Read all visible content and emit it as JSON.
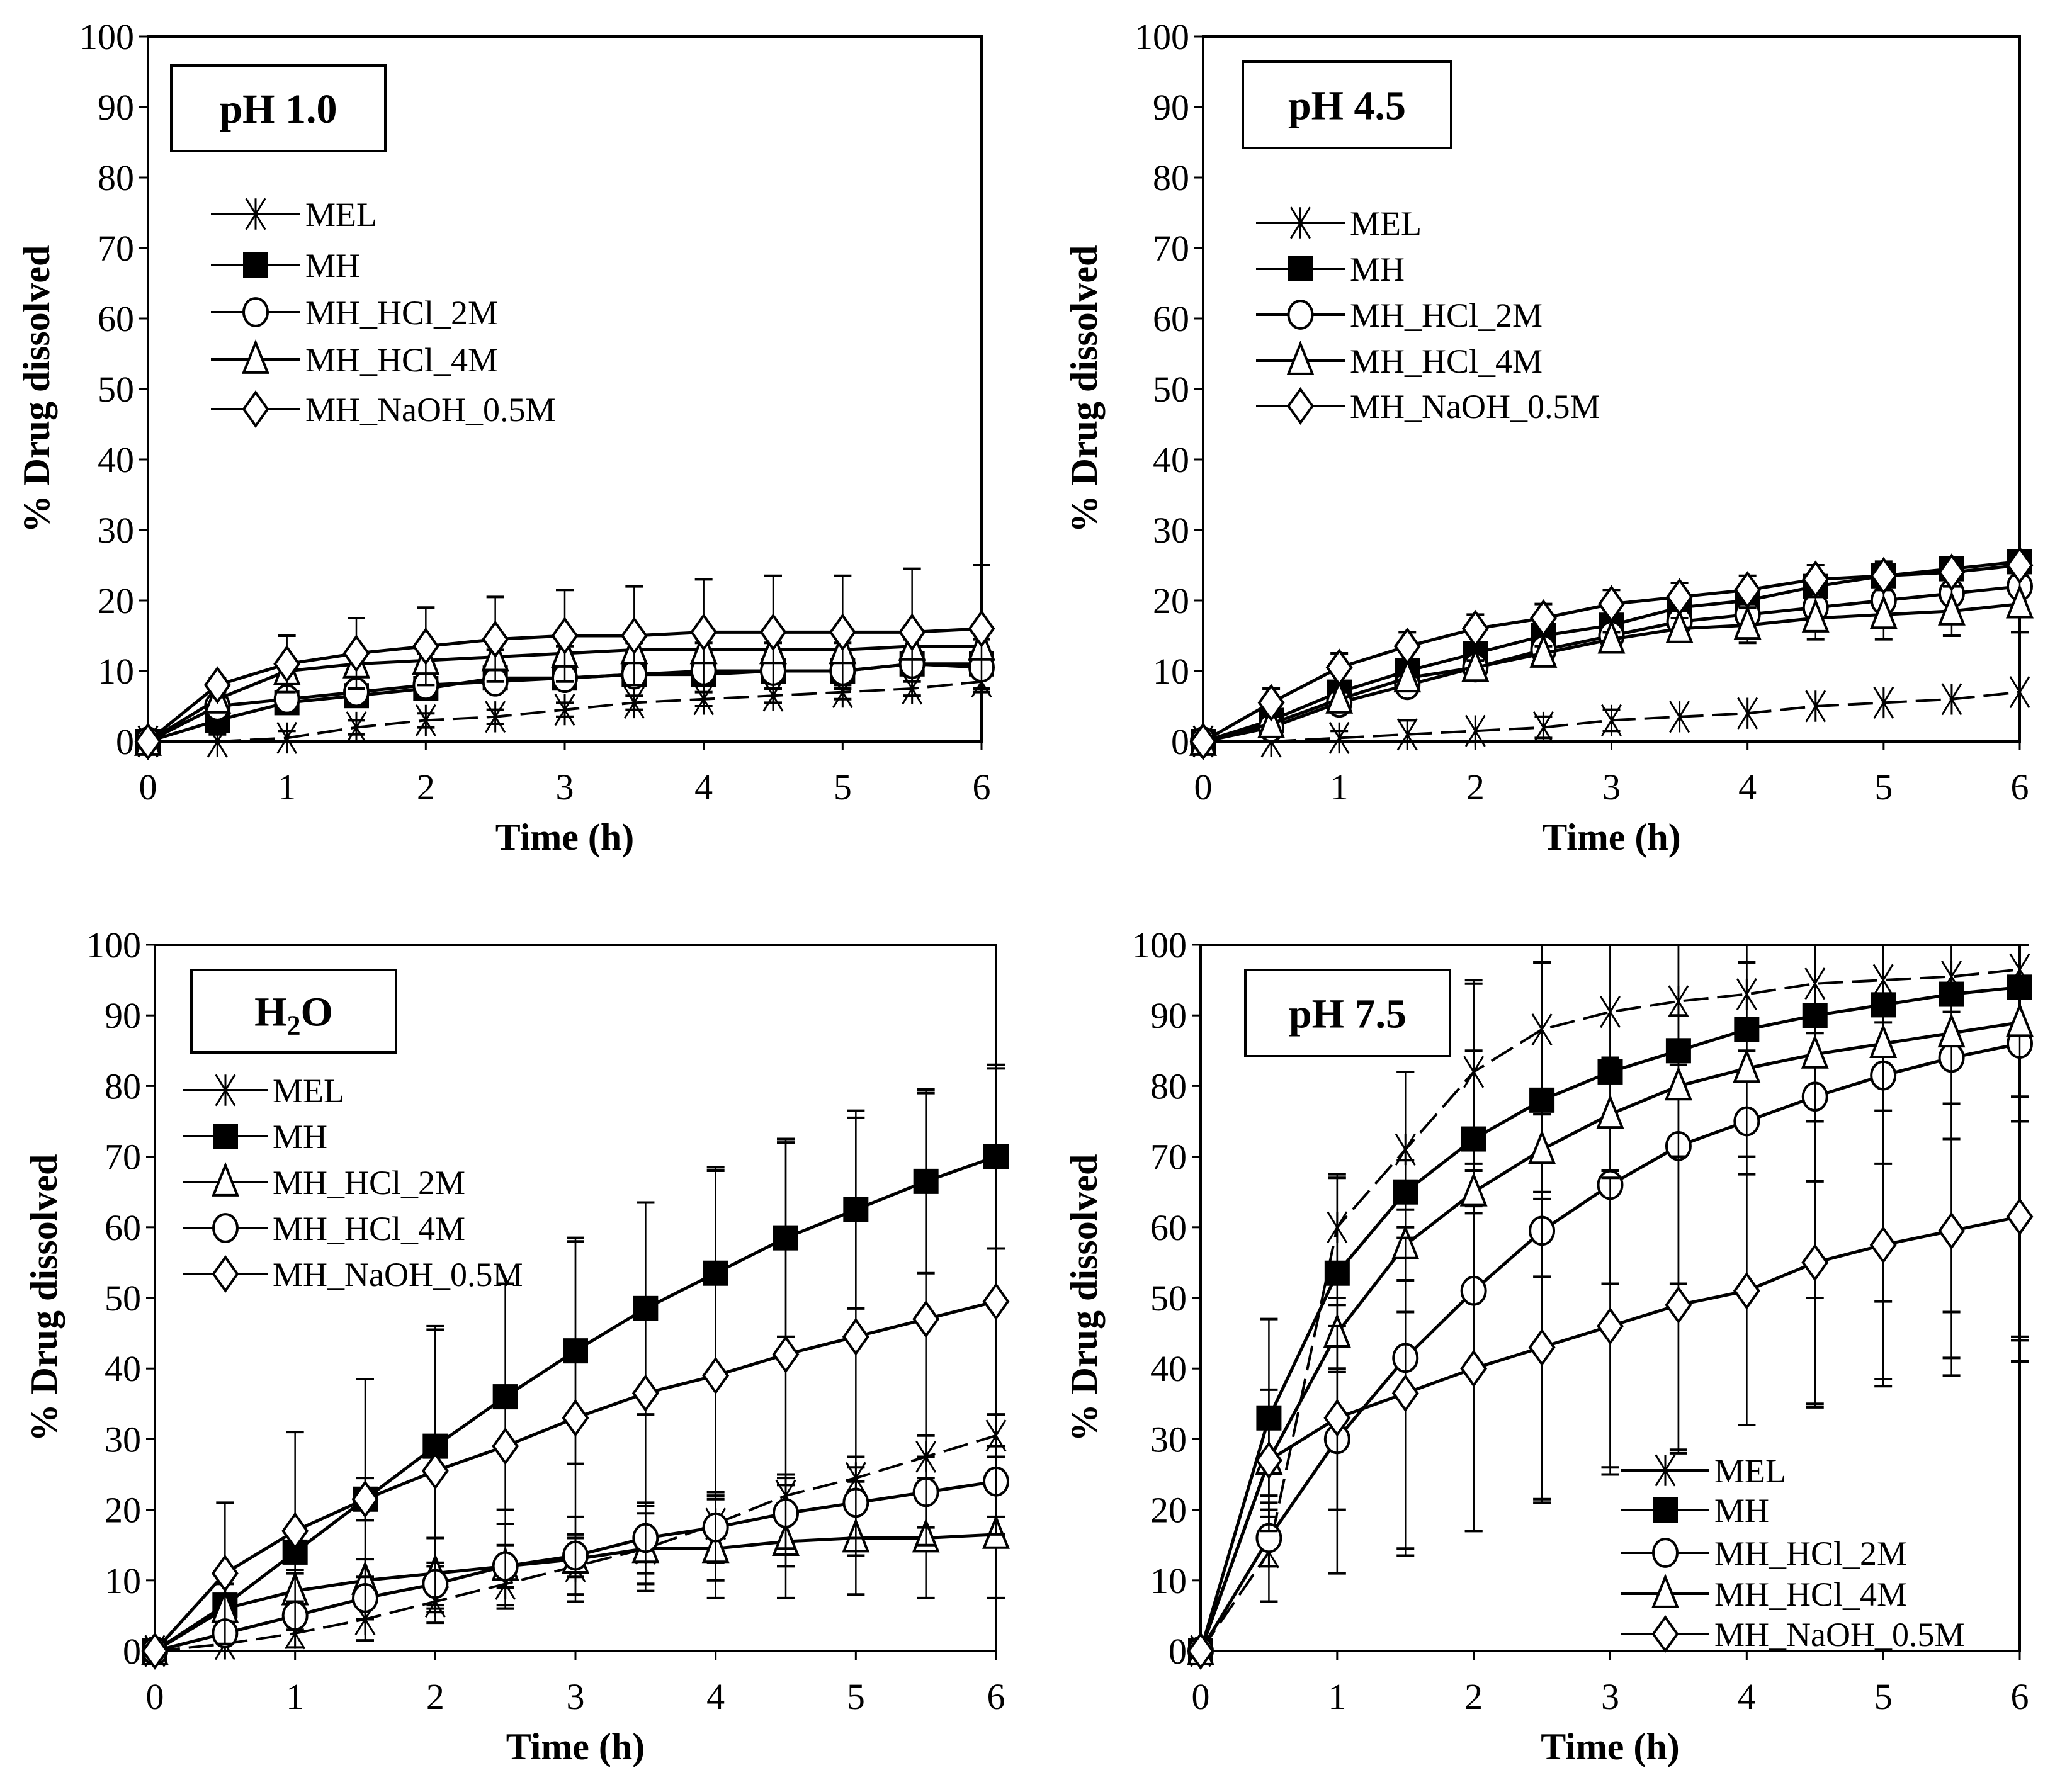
{
  "chart_data": [
    {
      "type": "line",
      "title": "pH 1.0",
      "xlabel": "Time (h)",
      "ylabel": "% Drug dissolved",
      "xlim": [
        0,
        6
      ],
      "ylim": [
        0,
        100
      ],
      "xticks": [
        0,
        1,
        2,
        3,
        4,
        5,
        6
      ],
      "yticks": [
        0,
        10,
        20,
        30,
        40,
        50,
        60,
        70,
        80,
        90,
        100
      ],
      "x": [
        0,
        0.5,
        1,
        1.5,
        2,
        2.5,
        3,
        3.5,
        4,
        4.5,
        5,
        5.5,
        6
      ],
      "legend_position": "upper-left",
      "series": [
        {
          "name": "MEL",
          "marker": "star",
          "dashed": true,
          "values": [
            0,
            0,
            0.5,
            2,
            3,
            3.5,
            4.5,
            5.5,
            6,
            6.5,
            7,
            7.5,
            8.5
          ],
          "sd": [
            0,
            1,
            1,
            1,
            1,
            1,
            1,
            1,
            1,
            1,
            1,
            1,
            1
          ]
        },
        {
          "name": "MH",
          "marker": "square-filled",
          "values": [
            0,
            3,
            5.5,
            6.5,
            7.5,
            9,
            9,
            9.5,
            9.5,
            10,
            10,
            11,
            11
          ],
          "sd": [
            0,
            1,
            1,
            1,
            1,
            1,
            1,
            1,
            1,
            1,
            1,
            1,
            1
          ]
        },
        {
          "name": "MH_HCl_2M",
          "marker": "circle",
          "values": [
            0,
            5,
            6,
            7,
            8,
            8.5,
            9,
            9.5,
            10,
            10,
            10,
            11,
            10.5
          ],
          "sd": [
            0,
            1,
            1,
            1,
            1,
            1,
            1,
            1,
            1,
            1,
            1,
            1,
            1
          ]
        },
        {
          "name": "MH_HCl_4M",
          "marker": "triangle",
          "values": [
            0,
            6,
            10,
            11,
            11.5,
            12,
            12.5,
            13,
            13,
            13,
            13,
            13.5,
            13.5
          ],
          "sd": [
            0,
            1,
            1,
            1,
            1,
            1,
            1,
            1,
            1,
            1,
            1,
            1,
            1
          ]
        },
        {
          "name": "MH_NaOH_0.5M",
          "marker": "diamond",
          "values": [
            0,
            8,
            11,
            12.5,
            13.5,
            14.5,
            15,
            15,
            15.5,
            15.5,
            15.5,
            15.5,
            16
          ],
          "sd": [
            0,
            1,
            4,
            5,
            5.5,
            6,
            6.5,
            7,
            7.5,
            8,
            8,
            9,
            9
          ]
        }
      ]
    },
    {
      "type": "line",
      "title": "pH 4.5",
      "xlabel": "Time (h)",
      "ylabel": "% Drug dissolved",
      "xlim": [
        0,
        6
      ],
      "ylim": [
        0,
        100
      ],
      "xticks": [
        0,
        1,
        2,
        3,
        4,
        5,
        6
      ],
      "yticks": [
        0,
        10,
        20,
        30,
        40,
        50,
        60,
        70,
        80,
        90,
        100
      ],
      "x": [
        0,
        0.5,
        1,
        1.5,
        2,
        2.5,
        3,
        3.5,
        4,
        4.5,
        5,
        5.5,
        6
      ],
      "legend_position": "upper-left",
      "series": [
        {
          "name": "MEL",
          "marker": "star",
          "dashed": true,
          "values": [
            0,
            0,
            0.5,
            1,
            1.5,
            2,
            3,
            3.5,
            4,
            5,
            5.5,
            6,
            7
          ],
          "sd": [
            0,
            0,
            1,
            2,
            0,
            1.5,
            1.5,
            0,
            0,
            0,
            0,
            0,
            0
          ]
        },
        {
          "name": "MH",
          "marker": "square-filled",
          "values": [
            0,
            3,
            7,
            10,
            12.5,
            15,
            16.5,
            19,
            20,
            22,
            23.5,
            24.5,
            25.5
          ],
          "sd": [
            0,
            1,
            1,
            1,
            1,
            1,
            1,
            1,
            1,
            1,
            1,
            1,
            1
          ]
        },
        {
          "name": "MH_HCl_2M",
          "marker": "circle",
          "values": [
            0,
            2,
            5.5,
            8,
            10.5,
            13,
            15,
            17,
            18,
            19,
            20,
            21,
            22
          ],
          "sd": [
            0,
            1,
            1,
            1,
            1,
            1,
            1,
            1,
            1,
            1,
            1,
            1,
            1
          ]
        },
        {
          "name": "MH_HCl_4M",
          "marker": "triangle",
          "values": [
            0,
            2.5,
            6,
            9,
            10.5,
            12.5,
            14.5,
            16,
            16.5,
            17.5,
            18,
            18.5,
            19.5
          ],
          "sd": [
            0,
            1,
            1,
            1,
            1,
            1,
            1,
            1.5,
            2.5,
            3,
            3.5,
            3.5,
            4
          ]
        },
        {
          "name": "MH_NaOH_0.5M",
          "marker": "diamond",
          "values": [
            0,
            5.5,
            10.5,
            13.5,
            16,
            17.5,
            19.5,
            20.5,
            21.5,
            23,
            23.5,
            24,
            25
          ],
          "sd": [
            0,
            2,
            2,
            2,
            2,
            2,
            2,
            2,
            2,
            2,
            2,
            1,
            1
          ]
        }
      ]
    },
    {
      "type": "line",
      "title": "H2O",
      "title_main": "H",
      "title_sub": "2",
      "title_tail": "O",
      "xlabel": "Time (h)",
      "ylabel": "% Drug dissolved",
      "xlim": [
        0,
        6
      ],
      "ylim": [
        0,
        100
      ],
      "xticks": [
        0,
        1,
        2,
        3,
        4,
        5,
        6
      ],
      "yticks": [
        0,
        10,
        20,
        30,
        40,
        50,
        60,
        70,
        80,
        90,
        100
      ],
      "x": [
        0,
        0.5,
        1,
        1.5,
        2,
        2.5,
        3,
        3.5,
        4,
        4.5,
        5,
        5.5,
        6
      ],
      "legend_position": "middle-left",
      "series": [
        {
          "name": "MEL",
          "marker": "star",
          "dashed": true,
          "values": [
            0,
            1,
            2.5,
            4.5,
            7,
            9.5,
            12,
            14.5,
            18,
            22,
            24.5,
            27.5,
            30.5
          ],
          "sd": [
            0,
            1,
            2,
            3,
            3,
            3,
            4,
            5,
            4,
            3,
            3,
            3,
            3
          ]
        },
        {
          "name": "MH",
          "marker": "square-filled",
          "values": [
            0,
            6.5,
            14,
            21.5,
            29,
            36,
            42.5,
            48.5,
            53.5,
            58.5,
            62.5,
            66.5,
            70
          ],
          "sd": [
            0,
            3,
            3,
            3,
            17,
            16,
            16,
            15,
            15,
            14,
            14,
            13,
            13
          ]
        },
        {
          "name": "MH_HCl_2M",
          "marker": "triangle",
          "values": [
            0,
            6,
            8.5,
            10,
            11,
            12,
            13,
            14.5,
            14.5,
            15.5,
            16,
            16,
            16.5
          ],
          "sd": [
            0,
            2,
            3,
            3,
            5,
            6,
            6,
            6,
            7,
            8,
            8,
            8.5,
            9
          ]
        },
        {
          "name": "MH_HCl_4M",
          "marker": "circle",
          "values": [
            0,
            2.5,
            5,
            7.5,
            9.5,
            12,
            13.5,
            16,
            17.5,
            19.5,
            21,
            22.5,
            24
          ],
          "sd": [
            0,
            1,
            2,
            3,
            3,
            3,
            3,
            5,
            5,
            5,
            5,
            5,
            5
          ]
        },
        {
          "name": "MH_NaOH_0.5M",
          "marker": "diamond",
          "values": [
            0,
            11,
            17,
            21.5,
            25.5,
            29,
            33,
            36.5,
            39,
            42,
            44.5,
            47,
            49.5
          ],
          "sd": [
            0,
            10,
            14,
            17,
            20,
            23,
            25,
            27,
            29,
            30,
            31,
            32,
            33
          ]
        }
      ]
    },
    {
      "type": "line",
      "title": "pH 7.5",
      "xlabel": "Time (h)",
      "ylabel": "% Drug dissolved",
      "xlim": [
        0,
        6
      ],
      "ylim": [
        0,
        100
      ],
      "xticks": [
        0,
        1,
        2,
        3,
        4,
        5,
        6
      ],
      "yticks": [
        0,
        10,
        20,
        30,
        40,
        50,
        60,
        70,
        80,
        90,
        100
      ],
      "x": [
        0,
        0.5,
        1,
        1.5,
        2,
        2.5,
        3,
        3.5,
        4,
        4.5,
        5,
        5.5,
        6
      ],
      "legend_position": "lower-right",
      "series": [
        {
          "name": "MEL",
          "marker": "star",
          "dashed": true,
          "values": [
            0,
            14,
            60,
            71,
            82,
            88,
            90.5,
            92,
            93,
            94.5,
            95,
            95.5,
            96.5
          ],
          "sd": [
            0,
            7,
            7,
            11,
            13,
            12,
            10,
            9,
            8,
            7,
            6,
            5,
            4
          ]
        },
        {
          "name": "MH",
          "marker": "square-filled",
          "values": [
            0,
            33,
            53.5,
            65,
            72.5,
            78,
            82,
            85,
            88,
            90,
            91.5,
            93,
            94
          ],
          "sd": [
            0,
            14,
            14,
            17,
            22,
            25,
            30,
            33,
            37,
            40,
            42,
            45,
            50
          ]
        },
        {
          "name": "MH_HCl_2M",
          "marker": "circle",
          "values": [
            0,
            16,
            30,
            41.5,
            51,
            59.5,
            66,
            71.5,
            75,
            78.5,
            81.5,
            84,
            86
          ],
          "sd": [
            0,
            4,
            19,
            28,
            34,
            38,
            40,
            43,
            43,
            44,
            44,
            45,
            45
          ]
        },
        {
          "name": "MH_HCl_4M",
          "marker": "triangle",
          "values": [
            0,
            27,
            45,
            57.5,
            65,
            71,
            76,
            80,
            82.5,
            84.5,
            86,
            87.5,
            89
          ],
          "sd": [
            0,
            5,
            5,
            5,
            3,
            7,
            8,
            10,
            15,
            18,
            17,
            15,
            14
          ]
        },
        {
          "name": "MH_NaOH_0.5M",
          "marker": "diamond",
          "values": [
            0,
            27,
            33,
            36.5,
            40,
            43,
            46,
            49,
            51,
            55,
            57.5,
            59.5,
            61.5
          ],
          "sd": [
            0,
            10,
            13,
            22,
            23,
            22,
            21,
            21,
            19,
            20,
            19,
            18,
            17
          ]
        }
      ]
    }
  ]
}
